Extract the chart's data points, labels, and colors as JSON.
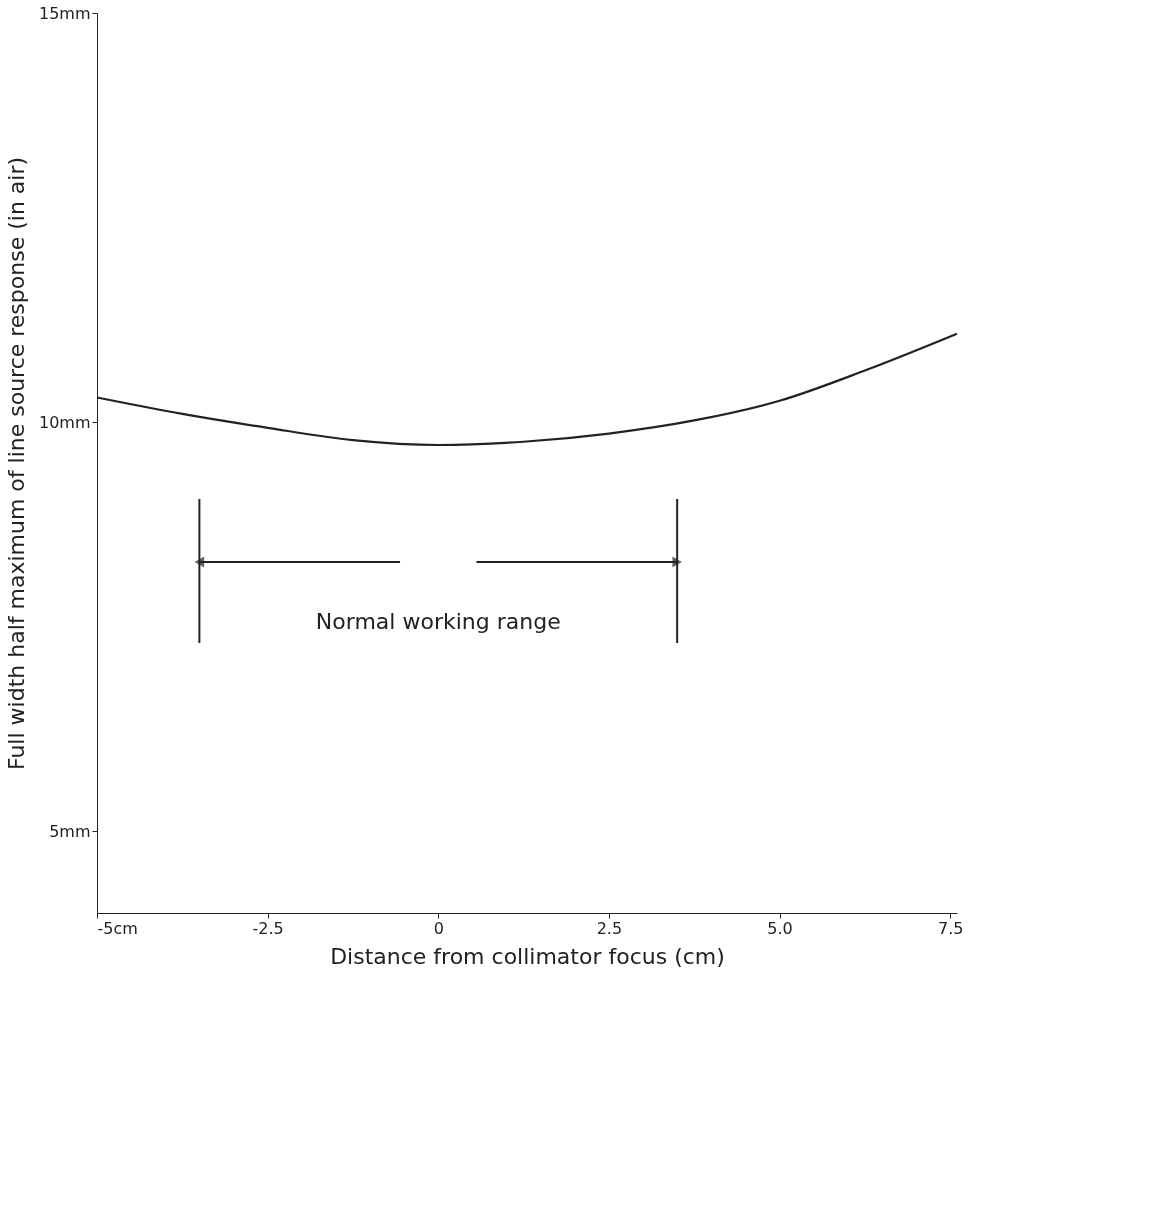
{
  "chart_data": {
    "type": "line",
    "xlabel": "Distance from collimator focus (cm)",
    "ylabel": "Full width half maximum of line source response (in air)",
    "x": [
      -5,
      -3.75,
      -2.5,
      -1.25,
      0,
      1.25,
      2.5,
      3.75,
      5,
      6.25,
      7.6
    ],
    "series": [
      {
        "color": "#222222",
        "values": [
          10.3,
          10.1,
          9.93,
          9.78,
          9.72,
          9.76,
          9.86,
          10.02,
          10.26,
          10.63,
          11.08
        ]
      }
    ],
    "xlim": [
      -5,
      7.6
    ],
    "ylim": [
      4.0,
      15.0
    ],
    "xticks": [
      {
        "value": -5,
        "label": "-5cm"
      },
      -2.5,
      0,
      2.5,
      {
        "value": 5,
        "label": "5.0"
      },
      7.5
    ],
    "yticks": [
      {
        "value": 5,
        "label": "5mm"
      },
      {
        "value": 10,
        "label": "10mm"
      },
      {
        "value": 15,
        "label": "15mm"
      }
    ],
    "ref_lines": [
      {
        "axis": "x",
        "value": -3.5,
        "color": "#222222"
      },
      {
        "axis": "x",
        "value": 3.5,
        "color": "#222222"
      }
    ],
    "annotations": [
      "Normal working range"
    ],
    "grid": false,
    "marker": "none",
    "line_style": "solid"
  }
}
